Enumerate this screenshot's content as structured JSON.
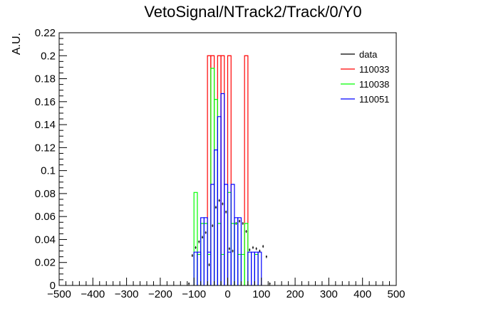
{
  "chart_data": {
    "type": "histogram",
    "title": "VetoSignal/NTrack2/Track/0/Y0",
    "xlabel": "",
    "ylabel": "A.U.",
    "xlim": [
      -500,
      500
    ],
    "ylim": [
      0,
      0.22
    ],
    "grid": false,
    "legend_position": "top-right",
    "x_ticks": [
      -500,
      -400,
      -300,
      -200,
      -100,
      0,
      100,
      200,
      300,
      400,
      500
    ],
    "x_tick_labels": [
      "−500",
      "−400",
      "−300",
      "−200",
      "−100",
      "0",
      "100",
      "200",
      "300",
      "400",
      "500"
    ],
    "y_ticks": [
      0,
      0.02,
      0.04,
      0.06,
      0.08,
      0.1,
      0.12,
      0.14,
      0.16,
      0.18,
      0.2,
      0.22
    ],
    "y_tick_labels": [
      "0",
      "0.02",
      "0.04",
      "0.06",
      "0.08",
      "0.1",
      "0.12",
      "0.14",
      "0.16",
      "0.18",
      "0.2",
      "0.22"
    ],
    "bin_width": 10,
    "series": [
      {
        "name": "data",
        "color": "#000000",
        "style": "points",
        "points": [
          {
            "x": -115,
            "y": 0.0015
          },
          {
            "x": -105,
            "y": 0.026
          },
          {
            "x": -95,
            "y": 0.033
          },
          {
            "x": -85,
            "y": 0.038
          },
          {
            "x": -75,
            "y": 0.042
          },
          {
            "x": -65,
            "y": 0.046
          },
          {
            "x": -55,
            "y": 0.018
          },
          {
            "x": -45,
            "y": 0.052
          },
          {
            "x": -35,
            "y": 0.068
          },
          {
            "x": -25,
            "y": 0.074
          },
          {
            "x": -15,
            "y": 0.071
          },
          {
            "x": -5,
            "y": 0.064
          },
          {
            "x": 5,
            "y": 0.032
          },
          {
            "x": 15,
            "y": 0.03
          },
          {
            "x": 25,
            "y": 0.054
          },
          {
            "x": 35,
            "y": 0.056
          },
          {
            "x": 45,
            "y": 0.054
          },
          {
            "x": 55,
            "y": 0.047
          },
          {
            "x": 65,
            "y": 0.031
          },
          {
            "x": 75,
            "y": 0.033
          },
          {
            "x": 85,
            "y": 0.032
          },
          {
            "x": 95,
            "y": 0.03
          },
          {
            "x": 105,
            "y": 0.034
          },
          {
            "x": 115,
            "y": 0.025
          },
          {
            "x": 125,
            "y": 0.0015
          }
        ]
      },
      {
        "name": "110033",
        "color": "#ff0000",
        "style": "step",
        "bins": [
          {
            "x0": -60,
            "x1": -50,
            "y": 0.2
          },
          {
            "x0": -50,
            "x1": -40,
            "y": 0.2
          },
          {
            "x0": -40,
            "x1": -30,
            "y": 0
          },
          {
            "x0": -30,
            "x1": -20,
            "y": 0.2
          },
          {
            "x0": -20,
            "x1": -10,
            "y": 0.2
          },
          {
            "x0": -10,
            "x1": 0,
            "y": 0
          },
          {
            "x0": 0,
            "x1": 10,
            "y": 0.2
          },
          {
            "x0": 10,
            "x1": 20,
            "y": 0
          },
          {
            "x0": 20,
            "x1": 50,
            "y": 0
          },
          {
            "x0": 50,
            "x1": 60,
            "y": 0.2
          }
        ]
      },
      {
        "name": "110038",
        "color": "#00ff00",
        "style": "step",
        "bins": [
          {
            "x0": -100,
            "x1": -90,
            "y": 0.081
          },
          {
            "x0": -90,
            "x1": -80,
            "y": 0.027
          },
          {
            "x0": -80,
            "x1": -70,
            "y": 0.054
          },
          {
            "x0": -70,
            "x1": -60,
            "y": 0.054
          },
          {
            "x0": -60,
            "x1": -50,
            "y": 0.027
          },
          {
            "x0": -50,
            "x1": -40,
            "y": 0.189
          },
          {
            "x0": -40,
            "x1": -30,
            "y": 0.162
          },
          {
            "x0": -30,
            "x1": -20,
            "y": 0.054
          },
          {
            "x0": -20,
            "x1": -10,
            "y": 0.027
          },
          {
            "x0": -10,
            "x1": 0,
            "y": 0.0
          },
          {
            "x0": 0,
            "x1": 10,
            "y": 0.081
          },
          {
            "x0": 10,
            "x1": 20,
            "y": 0.054
          },
          {
            "x0": 20,
            "x1": 30,
            "y": 0.054
          },
          {
            "x0": 30,
            "x1": 40,
            "y": 0.027
          },
          {
            "x0": 40,
            "x1": 50,
            "y": 0.027
          },
          {
            "x0": 50,
            "x1": 60,
            "y": 0.054
          },
          {
            "x0": 60,
            "x1": 70,
            "y": 0.0
          },
          {
            "x0": 70,
            "x1": 80,
            "y": 0.0
          },
          {
            "x0": 80,
            "x1": 90,
            "y": 0.027
          }
        ]
      },
      {
        "name": "110051",
        "color": "#0000ff",
        "style": "step",
        "bins": [
          {
            "x0": -100,
            "x1": -90,
            "y": 0.029
          },
          {
            "x0": -90,
            "x1": -80,
            "y": 0.029
          },
          {
            "x0": -80,
            "x1": -70,
            "y": 0.059
          },
          {
            "x0": -70,
            "x1": -60,
            "y": 0.059
          },
          {
            "x0": -60,
            "x1": -50,
            "y": 0.029
          },
          {
            "x0": -50,
            "x1": -40,
            "y": 0.088
          },
          {
            "x0": -40,
            "x1": -30,
            "y": 0.118
          },
          {
            "x0": -30,
            "x1": -20,
            "y": 0.147
          },
          {
            "x0": -20,
            "x1": -10,
            "y": 0.167
          },
          {
            "x0": -10,
            "x1": 0,
            "y": 0.088
          },
          {
            "x0": 0,
            "x1": 10,
            "y": 0.029
          },
          {
            "x0": 10,
            "x1": 20,
            "y": 0.088
          },
          {
            "x0": 20,
            "x1": 30,
            "y": 0.059
          },
          {
            "x0": 30,
            "x1": 40,
            "y": 0.059
          },
          {
            "x0": 40,
            "x1": 50,
            "y": 0.0
          },
          {
            "x0": 50,
            "x1": 60,
            "y": 0.0
          },
          {
            "x0": 60,
            "x1": 70,
            "y": 0.029
          },
          {
            "x0": 70,
            "x1": 80,
            "y": 0.029
          },
          {
            "x0": 80,
            "x1": 90,
            "y": 0.029
          },
          {
            "x0": 90,
            "x1": 100,
            "y": 0.029
          }
        ]
      }
    ]
  }
}
